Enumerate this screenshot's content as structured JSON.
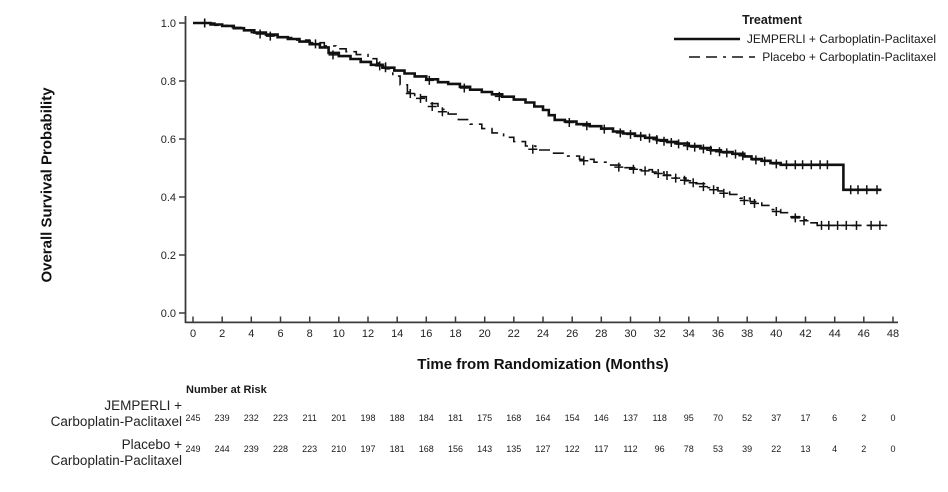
{
  "colors": {
    "background": "#ffffff",
    "axis": "#3c3c3c",
    "text": "#1f1f1f",
    "curve": "#111111"
  },
  "chart_data": {
    "type": "line",
    "subtype": "kaplan-meier-step-curve",
    "title": "",
    "xlabel": "Time from Randomization (Months)",
    "ylabel": "Overall Survival Probability",
    "xlim": [
      0,
      48
    ],
    "ylim": [
      0.0,
      1.0
    ],
    "grid": false,
    "x_ticks": [
      0,
      2,
      4,
      6,
      8,
      10,
      12,
      14,
      16,
      18,
      20,
      22,
      24,
      26,
      28,
      30,
      32,
      34,
      36,
      38,
      40,
      42,
      44,
      46,
      48
    ],
    "y_ticks": [
      0.0,
      0.2,
      0.4,
      0.6,
      0.8,
      1.0
    ],
    "y_tick_labels": [
      "0.0",
      "0.2",
      "0.4",
      "0.6",
      "0.8",
      "1.0"
    ],
    "legend": {
      "title": "Treatment",
      "position": "top-right"
    },
    "series": [
      {
        "name": "JEMPERLI + Carboplatin-Paclitaxel",
        "line_style": "solid",
        "color": "#111111",
        "steps": [
          [
            0,
            1
          ],
          [
            1.2,
            0.995
          ],
          [
            2,
            0.99
          ],
          [
            2.8,
            0.982
          ],
          [
            3.5,
            0.975
          ],
          [
            4.2,
            0.967
          ],
          [
            5,
            0.96
          ],
          [
            5.8,
            0.951
          ],
          [
            6.5,
            0.945
          ],
          [
            7.3,
            0.936
          ],
          [
            8,
            0.927
          ],
          [
            8.7,
            0.916
          ],
          [
            9.3,
            0.897
          ],
          [
            10,
            0.886
          ],
          [
            10.8,
            0.876
          ],
          [
            11.5,
            0.866
          ],
          [
            12.2,
            0.856
          ],
          [
            13,
            0.846
          ],
          [
            13.8,
            0.836
          ],
          [
            14.5,
            0.826
          ],
          [
            15.2,
            0.816
          ],
          [
            16,
            0.806
          ],
          [
            16.8,
            0.796
          ],
          [
            17.5,
            0.79
          ],
          [
            18.3,
            0.78
          ],
          [
            19,
            0.77
          ],
          [
            19.8,
            0.762
          ],
          [
            20.5,
            0.754
          ],
          [
            21.2,
            0.746
          ],
          [
            22,
            0.736
          ],
          [
            22.8,
            0.726
          ],
          [
            23.4,
            0.712
          ],
          [
            24,
            0.7
          ],
          [
            24.4,
            0.682
          ],
          [
            24.8,
            0.666
          ],
          [
            25.5,
            0.66
          ],
          [
            26.3,
            0.651
          ],
          [
            27.2,
            0.644
          ],
          [
            28,
            0.636
          ],
          [
            28.8,
            0.626
          ],
          [
            29.5,
            0.619
          ],
          [
            30.3,
            0.611
          ],
          [
            31,
            0.604
          ],
          [
            31.8,
            0.596
          ],
          [
            32.5,
            0.59
          ],
          [
            33.2,
            0.584
          ],
          [
            34,
            0.576
          ],
          [
            34.8,
            0.569
          ],
          [
            35.5,
            0.561
          ],
          [
            36.2,
            0.555
          ],
          [
            37,
            0.549
          ],
          [
            37.8,
            0.54
          ],
          [
            38.3,
            0.531
          ],
          [
            39,
            0.525
          ],
          [
            39.6,
            0.517
          ],
          [
            40.3,
            0.511
          ],
          [
            44.6,
            0.425
          ],
          [
            47.2,
            0.425
          ]
        ],
        "censor_marks": [
          [
            0.8,
            1
          ],
          [
            5.3,
            0.955
          ],
          [
            9.6,
            0.89
          ],
          [
            13.2,
            0.846
          ],
          [
            16.2,
            0.802
          ],
          [
            18.6,
            0.776
          ],
          [
            21,
            0.747
          ],
          [
            25.8,
            0.657
          ],
          [
            27,
            0.646
          ],
          [
            28.2,
            0.634
          ],
          [
            29.3,
            0.621
          ],
          [
            30,
            0.616
          ],
          [
            30.7,
            0.609
          ],
          [
            31.3,
            0.603
          ],
          [
            31.8,
            0.598
          ],
          [
            32.3,
            0.592
          ],
          [
            32.8,
            0.588
          ],
          [
            33.3,
            0.583
          ],
          [
            33.9,
            0.577
          ],
          [
            34.4,
            0.572
          ],
          [
            35,
            0.566
          ],
          [
            35.5,
            0.561
          ],
          [
            36.1,
            0.556
          ],
          [
            36.6,
            0.552
          ],
          [
            37.2,
            0.548
          ],
          [
            37.7,
            0.542
          ],
          [
            38.6,
            0.528
          ],
          [
            39.2,
            0.523
          ],
          [
            40,
            0.514
          ],
          [
            40.7,
            0.511
          ],
          [
            41.3,
            0.511
          ],
          [
            41.8,
            0.511
          ],
          [
            42.4,
            0.511
          ],
          [
            43,
            0.511
          ],
          [
            43.5,
            0.511
          ],
          [
            45.1,
            0.425
          ],
          [
            45.6,
            0.425
          ],
          [
            46.2,
            0.425
          ],
          [
            46.9,
            0.425
          ]
        ]
      },
      {
        "name": "Placebo + Carboplatin-Paclitaxel",
        "line_style": "dashed",
        "color": "#111111",
        "steps": [
          [
            0,
            1
          ],
          [
            1.5,
            0.992
          ],
          [
            2.5,
            0.985
          ],
          [
            3.3,
            0.976
          ],
          [
            4,
            0.967
          ],
          [
            5,
            0.957
          ],
          [
            6,
            0.95
          ],
          [
            7,
            0.941
          ],
          [
            8,
            0.932
          ],
          [
            9,
            0.921
          ],
          [
            9.8,
            0.911
          ],
          [
            10.5,
            0.901
          ],
          [
            11.2,
            0.891
          ],
          [
            12,
            0.877
          ],
          [
            12.6,
            0.862
          ],
          [
            13.2,
            0.842
          ],
          [
            13.7,
            0.817
          ],
          [
            14.2,
            0.787
          ],
          [
            14.7,
            0.762
          ],
          [
            15.2,
            0.746
          ],
          [
            16,
            0.722
          ],
          [
            16.8,
            0.702
          ],
          [
            17.5,
            0.686
          ],
          [
            18.2,
            0.667
          ],
          [
            19,
            0.651
          ],
          [
            19.8,
            0.636
          ],
          [
            20.5,
            0.621
          ],
          [
            21.3,
            0.606
          ],
          [
            22,
            0.591
          ],
          [
            22.8,
            0.576
          ],
          [
            23.5,
            0.562
          ],
          [
            24.5,
            0.551
          ],
          [
            25.5,
            0.541
          ],
          [
            26.5,
            0.53
          ],
          [
            27.5,
            0.52
          ],
          [
            28.5,
            0.51
          ],
          [
            29.5,
            0.501
          ],
          [
            30.5,
            0.494
          ],
          [
            31.5,
            0.486
          ],
          [
            32.3,
            0.476
          ],
          [
            33,
            0.466
          ],
          [
            33.8,
            0.456
          ],
          [
            34.5,
            0.446
          ],
          [
            35.2,
            0.432
          ],
          [
            36,
            0.421
          ],
          [
            36.8,
            0.409
          ],
          [
            37.5,
            0.396
          ],
          [
            38.2,
            0.384
          ],
          [
            39,
            0.371
          ],
          [
            39.6,
            0.357
          ],
          [
            40.3,
            0.346
          ],
          [
            41,
            0.332
          ],
          [
            41.6,
            0.321
          ],
          [
            42.2,
            0.311
          ],
          [
            42.8,
            0.302
          ],
          [
            47.6,
            0.302
          ]
        ],
        "censor_marks": [
          [
            0.8,
            1
          ],
          [
            4.6,
            0.962
          ],
          [
            8.4,
            0.928
          ],
          [
            12.8,
            0.852
          ],
          [
            14.9,
            0.757
          ],
          [
            15.6,
            0.74
          ],
          [
            16.4,
            0.712
          ],
          [
            17.1,
            0.694
          ],
          [
            23.3,
            0.565
          ],
          [
            26.8,
            0.525
          ],
          [
            29.2,
            0.503
          ],
          [
            30.2,
            0.496
          ],
          [
            31,
            0.49
          ],
          [
            31.9,
            0.481
          ],
          [
            32.5,
            0.474
          ],
          [
            33.1,
            0.465
          ],
          [
            33.7,
            0.458
          ],
          [
            34.3,
            0.449
          ],
          [
            35,
            0.436
          ],
          [
            35.7,
            0.425
          ],
          [
            36.4,
            0.413
          ],
          [
            37.8,
            0.388
          ],
          [
            38.5,
            0.378
          ],
          [
            40,
            0.35
          ],
          [
            41.3,
            0.328
          ],
          [
            41.9,
            0.318
          ],
          [
            43.1,
            0.302
          ],
          [
            43.6,
            0.302
          ],
          [
            44.2,
            0.302
          ],
          [
            44.8,
            0.302
          ],
          [
            45.5,
            0.302
          ],
          [
            46.5,
            0.302
          ],
          [
            47.1,
            0.302
          ]
        ]
      }
    ],
    "number_at_risk": {
      "header": "Number at Risk",
      "time_points": [
        0,
        2,
        4,
        6,
        8,
        10,
        12,
        14,
        16,
        18,
        20,
        22,
        24,
        26,
        28,
        30,
        32,
        34,
        36,
        38,
        40,
        42,
        44,
        46,
        48
      ],
      "rows": [
        {
          "label_line1": "JEMPERLI +",
          "label_line2": "Carboplatin-Paclitaxel",
          "counts": [
            245,
            239,
            232,
            223,
            211,
            201,
            198,
            188,
            184,
            181,
            175,
            168,
            164,
            154,
            146,
            137,
            118,
            95,
            70,
            52,
            37,
            17,
            6,
            2,
            0
          ]
        },
        {
          "label_line1": "Placebo +",
          "label_line2": "Carboplatin-Paclitaxel",
          "counts": [
            249,
            244,
            239,
            228,
            223,
            210,
            197,
            181,
            168,
            156,
            143,
            135,
            127,
            122,
            117,
            112,
            96,
            78,
            53,
            39,
            22,
            13,
            4,
            2,
            0
          ]
        }
      ]
    }
  }
}
